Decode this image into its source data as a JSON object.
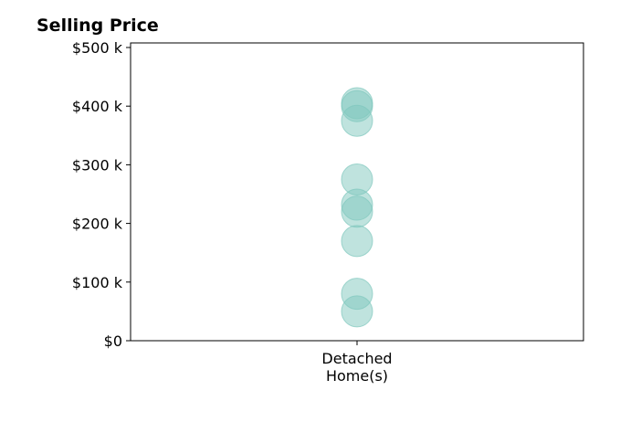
{
  "chart_data": {
    "type": "scatter",
    "title": "Selling Price",
    "xlabel": "",
    "ylabel": "",
    "categories": [
      "Detached\nHome(s)"
    ],
    "ylim": [
      0,
      500000
    ],
    "yticks": [
      {
        "value": 0,
        "label": "$0"
      },
      {
        "value": 100000,
        "label": "$100 k"
      },
      {
        "value": 200000,
        "label": "$200 k"
      },
      {
        "value": 300000,
        "label": "$300 k"
      },
      {
        "value": 400000,
        "label": "$400 k"
      },
      {
        "value": 500000,
        "label": "$500 k"
      }
    ],
    "series": [
      {
        "category": "Detached\nHome(s)",
        "values": [
          405000,
          400000,
          375000,
          275000,
          232000,
          220000,
          170000,
          80000,
          50000
        ],
        "color": "#7fc8be",
        "opacity": 0.5
      }
    ],
    "grid": false,
    "legend": "none"
  }
}
